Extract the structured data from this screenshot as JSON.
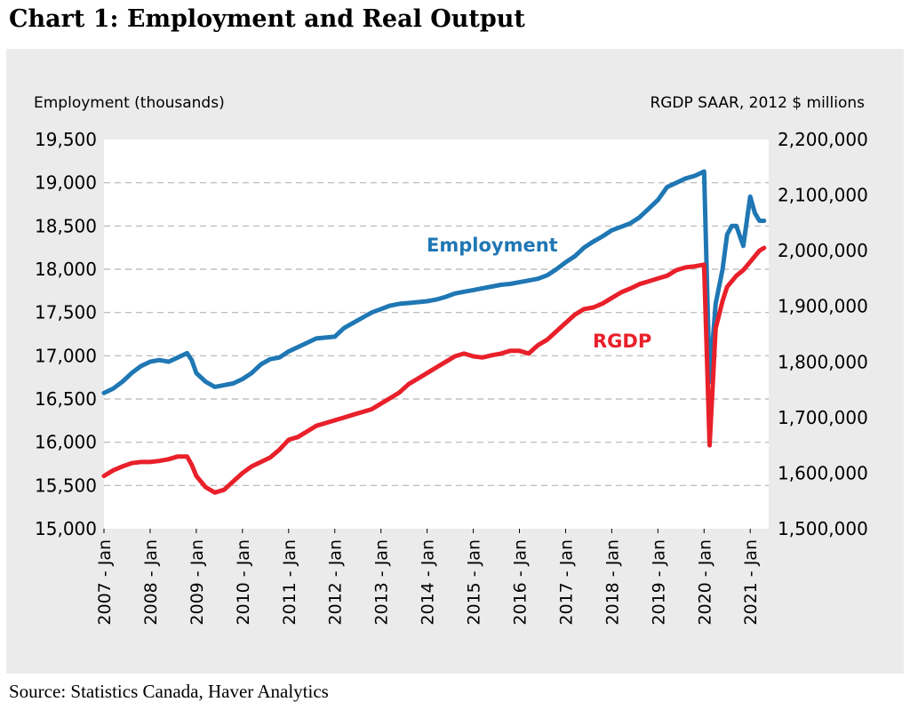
{
  "title": "Chart 1: Employment and Real Output",
  "source": "Source: Statistics Canada, Haver Analytics",
  "chart_data": {
    "type": "line",
    "left_axis_title": "Employment (thousands)",
    "right_axis_title": "RGDP SAAR, 2012 $ millions",
    "left_ylim": [
      15000,
      19500
    ],
    "right_ylim": [
      1500000,
      2200000
    ],
    "left_ticks": [
      "19,500",
      "19,000",
      "18,500",
      "18,000",
      "17,500",
      "17,000",
      "16,500",
      "16,000",
      "15,500",
      "15,000"
    ],
    "right_ticks": [
      "2,200,000",
      "2,100,000",
      "2,000,000",
      "1,900,000",
      "1,800,000",
      "1,700,000",
      "1,600,000",
      "1,500,000"
    ],
    "x_ticks": [
      "2007 - Jan",
      "2008 - Jan",
      "2009 - Jan",
      "2010 - Jan",
      "2011 - Jan",
      "2012 - Jan",
      "2013 - Jan",
      "2014 - Jan",
      "2015 - Jan",
      "2016 - Jan",
      "2017 - Jan",
      "2018 - Jan",
      "2019 - Jan",
      "2020 - Jan",
      "2021 - Jan"
    ],
    "x_range": [
      2007.0,
      2021.4
    ],
    "grid": true,
    "colors": {
      "employment": "#1f77b4",
      "rgdp": "#e8202a"
    },
    "series": [
      {
        "name": "Employment",
        "axis": "left",
        "color": "#1f77b4",
        "x": [
          2007.0,
          2007.2,
          2007.4,
          2007.6,
          2007.8,
          2008.0,
          2008.2,
          2008.4,
          2008.6,
          2008.8,
          2008.9,
          2009.0,
          2009.2,
          2009.4,
          2009.6,
          2009.8,
          2010.0,
          2010.2,
          2010.4,
          2010.6,
          2010.8,
          2011.0,
          2011.2,
          2011.4,
          2011.6,
          2011.8,
          2012.0,
          2012.2,
          2012.4,
          2012.6,
          2012.8,
          2013.0,
          2013.2,
          2013.4,
          2013.6,
          2013.8,
          2014.0,
          2014.2,
          2014.4,
          2014.6,
          2014.8,
          2015.0,
          2015.2,
          2015.4,
          2015.6,
          2015.8,
          2016.0,
          2016.2,
          2016.4,
          2016.6,
          2016.8,
          2017.0,
          2017.2,
          2017.4,
          2017.6,
          2017.8,
          2018.0,
          2018.2,
          2018.4,
          2018.6,
          2018.8,
          2019.0,
          2019.2,
          2019.4,
          2019.6,
          2019.8,
          2020.0,
          2020.12,
          2020.25,
          2020.4,
          2020.5,
          2020.6,
          2020.7,
          2020.85,
          2021.0,
          2021.1,
          2021.2,
          2021.3
        ],
        "values": [
          16570,
          16620,
          16700,
          16800,
          16880,
          16930,
          16950,
          16930,
          16980,
          17030,
          16950,
          16800,
          16700,
          16640,
          16660,
          16680,
          16730,
          16800,
          16900,
          16960,
          16980,
          17050,
          17100,
          17150,
          17200,
          17210,
          17220,
          17320,
          17380,
          17440,
          17500,
          17540,
          17580,
          17600,
          17610,
          17620,
          17630,
          17650,
          17680,
          17720,
          17740,
          17760,
          17780,
          17800,
          17820,
          17830,
          17850,
          17870,
          17890,
          17930,
          18000,
          18080,
          18150,
          18250,
          18320,
          18380,
          18450,
          18490,
          18530,
          18600,
          18700,
          18800,
          18950,
          19000,
          19050,
          19080,
          19130,
          16700,
          17600,
          18000,
          18400,
          18500,
          18500,
          18270,
          18840,
          18650,
          18560,
          18560
        ]
      },
      {
        "name": "RGDP",
        "axis": "right",
        "color": "#e8202a",
        "x": [
          2007.0,
          2007.2,
          2007.4,
          2007.6,
          2007.8,
          2008.0,
          2008.2,
          2008.4,
          2008.6,
          2008.8,
          2008.9,
          2009.0,
          2009.2,
          2009.4,
          2009.6,
          2009.8,
          2010.0,
          2010.2,
          2010.4,
          2010.6,
          2010.8,
          2011.0,
          2011.2,
          2011.4,
          2011.6,
          2011.8,
          2012.0,
          2012.2,
          2012.4,
          2012.6,
          2012.8,
          2013.0,
          2013.2,
          2013.4,
          2013.6,
          2013.8,
          2014.0,
          2014.2,
          2014.4,
          2014.6,
          2014.8,
          2015.0,
          2015.2,
          2015.4,
          2015.6,
          2015.8,
          2016.0,
          2016.2,
          2016.4,
          2016.6,
          2016.8,
          2017.0,
          2017.2,
          2017.4,
          2017.6,
          2017.8,
          2018.0,
          2018.2,
          2018.4,
          2018.6,
          2018.8,
          2019.0,
          2019.2,
          2019.4,
          2019.6,
          2019.8,
          2020.0,
          2020.12,
          2020.25,
          2020.4,
          2020.5,
          2020.6,
          2020.7,
          2020.85,
          2021.0,
          2021.1,
          2021.2,
          2021.3
        ],
        "values": [
          1595000,
          1605000,
          1612000,
          1618000,
          1620000,
          1620000,
          1622000,
          1625000,
          1630000,
          1630000,
          1615000,
          1595000,
          1575000,
          1565000,
          1570000,
          1585000,
          1600000,
          1612000,
          1620000,
          1628000,
          1642000,
          1660000,
          1665000,
          1675000,
          1685000,
          1690000,
          1695000,
          1700000,
          1705000,
          1710000,
          1715000,
          1725000,
          1735000,
          1745000,
          1760000,
          1770000,
          1780000,
          1790000,
          1800000,
          1810000,
          1815000,
          1810000,
          1808000,
          1812000,
          1815000,
          1820000,
          1820000,
          1815000,
          1830000,
          1840000,
          1855000,
          1870000,
          1885000,
          1895000,
          1898000,
          1905000,
          1915000,
          1925000,
          1932000,
          1940000,
          1945000,
          1950000,
          1955000,
          1965000,
          1970000,
          1972000,
          1975000,
          1650000,
          1860000,
          1910000,
          1935000,
          1945000,
          1955000,
          1965000,
          1980000,
          1990000,
          2000000,
          2005000
        ]
      }
    ],
    "annotations": [
      {
        "text": "Employment",
        "series": "Employment"
      },
      {
        "text": "RGDP",
        "series": "RGDP"
      }
    ]
  }
}
